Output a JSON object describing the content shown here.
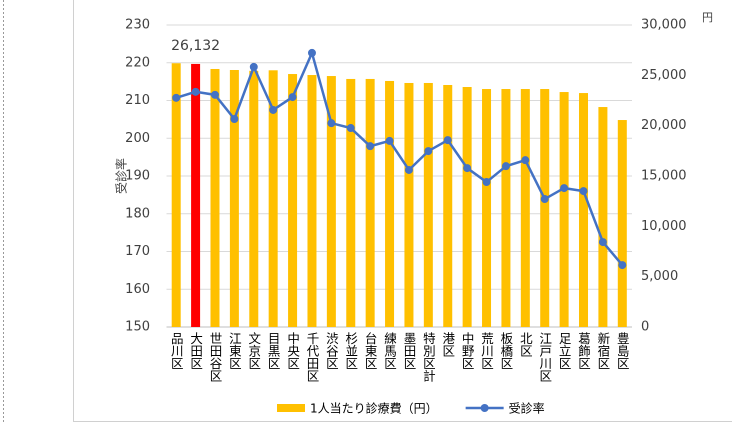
{
  "chart_data": {
    "type": "bar-line",
    "categories": [
      "品川区",
      "大田区",
      "世田谷区",
      "江東区",
      "文京区",
      "目黒区",
      "中央区",
      "千代田区",
      "渋谷区",
      "杉並区",
      "台東区",
      "練馬区",
      "墨田区",
      "特別区計",
      "港区",
      "中野区",
      "荒川区",
      "板橋区",
      "北区",
      "江戸川区",
      "足立区",
      "葛飾区",
      "新宿区",
      "豊島区"
    ],
    "series": [
      {
        "name": "1人当たり診療費（円）",
        "type": "bar",
        "axis": "y2",
        "color": "#ffc000",
        "colors": [
          "#ffc000",
          "#ff0000",
          "#ffc000",
          "#ffc000",
          "#ffc000",
          "#ffc000",
          "#ffc000",
          "#ffc000",
          "#ffc000",
          "#ffc000",
          "#ffc000",
          "#ffc000",
          "#ffc000",
          "#ffc000",
          "#ffc000",
          "#ffc000",
          "#ffc000",
          "#ffc000",
          "#ffc000",
          "#ffc000",
          "#ffc000",
          "#ffc000",
          "#ffc000",
          "#ffc000"
        ],
        "values": [
          26200,
          26132,
          25630,
          25530,
          25450,
          25500,
          25130,
          25030,
          24930,
          24640,
          24640,
          24440,
          24240,
          24240,
          24040,
          23840,
          23640,
          23640,
          23640,
          23640,
          23340,
          23240,
          21850,
          20560
        ],
        "value_labels": [
          null,
          "26,132",
          null,
          null,
          null,
          null,
          null,
          null,
          null,
          null,
          null,
          null,
          null,
          null,
          null,
          null,
          null,
          null,
          null,
          null,
          null,
          null,
          null,
          null
        ]
      },
      {
        "name": "受診率",
        "type": "line",
        "axis": "y",
        "color": "#4472c4",
        "values": [
          210.7,
          212.3,
          211.5,
          205.1,
          218.9,
          207.5,
          210.9,
          222.6,
          204.0,
          202.7,
          197.9,
          199.3,
          191.6,
          196.6,
          199.5,
          192.1,
          188.4,
          192.6,
          194.2,
          183.9,
          186.8,
          186.0,
          172.5,
          166.4
        ]
      }
    ],
    "y_label": "受診率",
    "ylim": [
      150,
      230
    ],
    "yticks": [
      150,
      160,
      170,
      180,
      190,
      200,
      210,
      220,
      230
    ],
    "y2lim": [
      0,
      30000
    ],
    "y2ticks": [
      0,
      {
        "value": 5000,
        "label": "5,000"
      },
      {
        "value": 10000,
        "label": "10,000"
      },
      {
        "value": 15000,
        "label": "15,000"
      },
      {
        "value": 20000,
        "label": "20,000"
      },
      {
        "value": 25000,
        "label": "25,000"
      },
      {
        "value": 30000,
        "label": "30,000"
      }
    ],
    "y2_unit": "円",
    "grid": true,
    "legend": "bottom"
  }
}
